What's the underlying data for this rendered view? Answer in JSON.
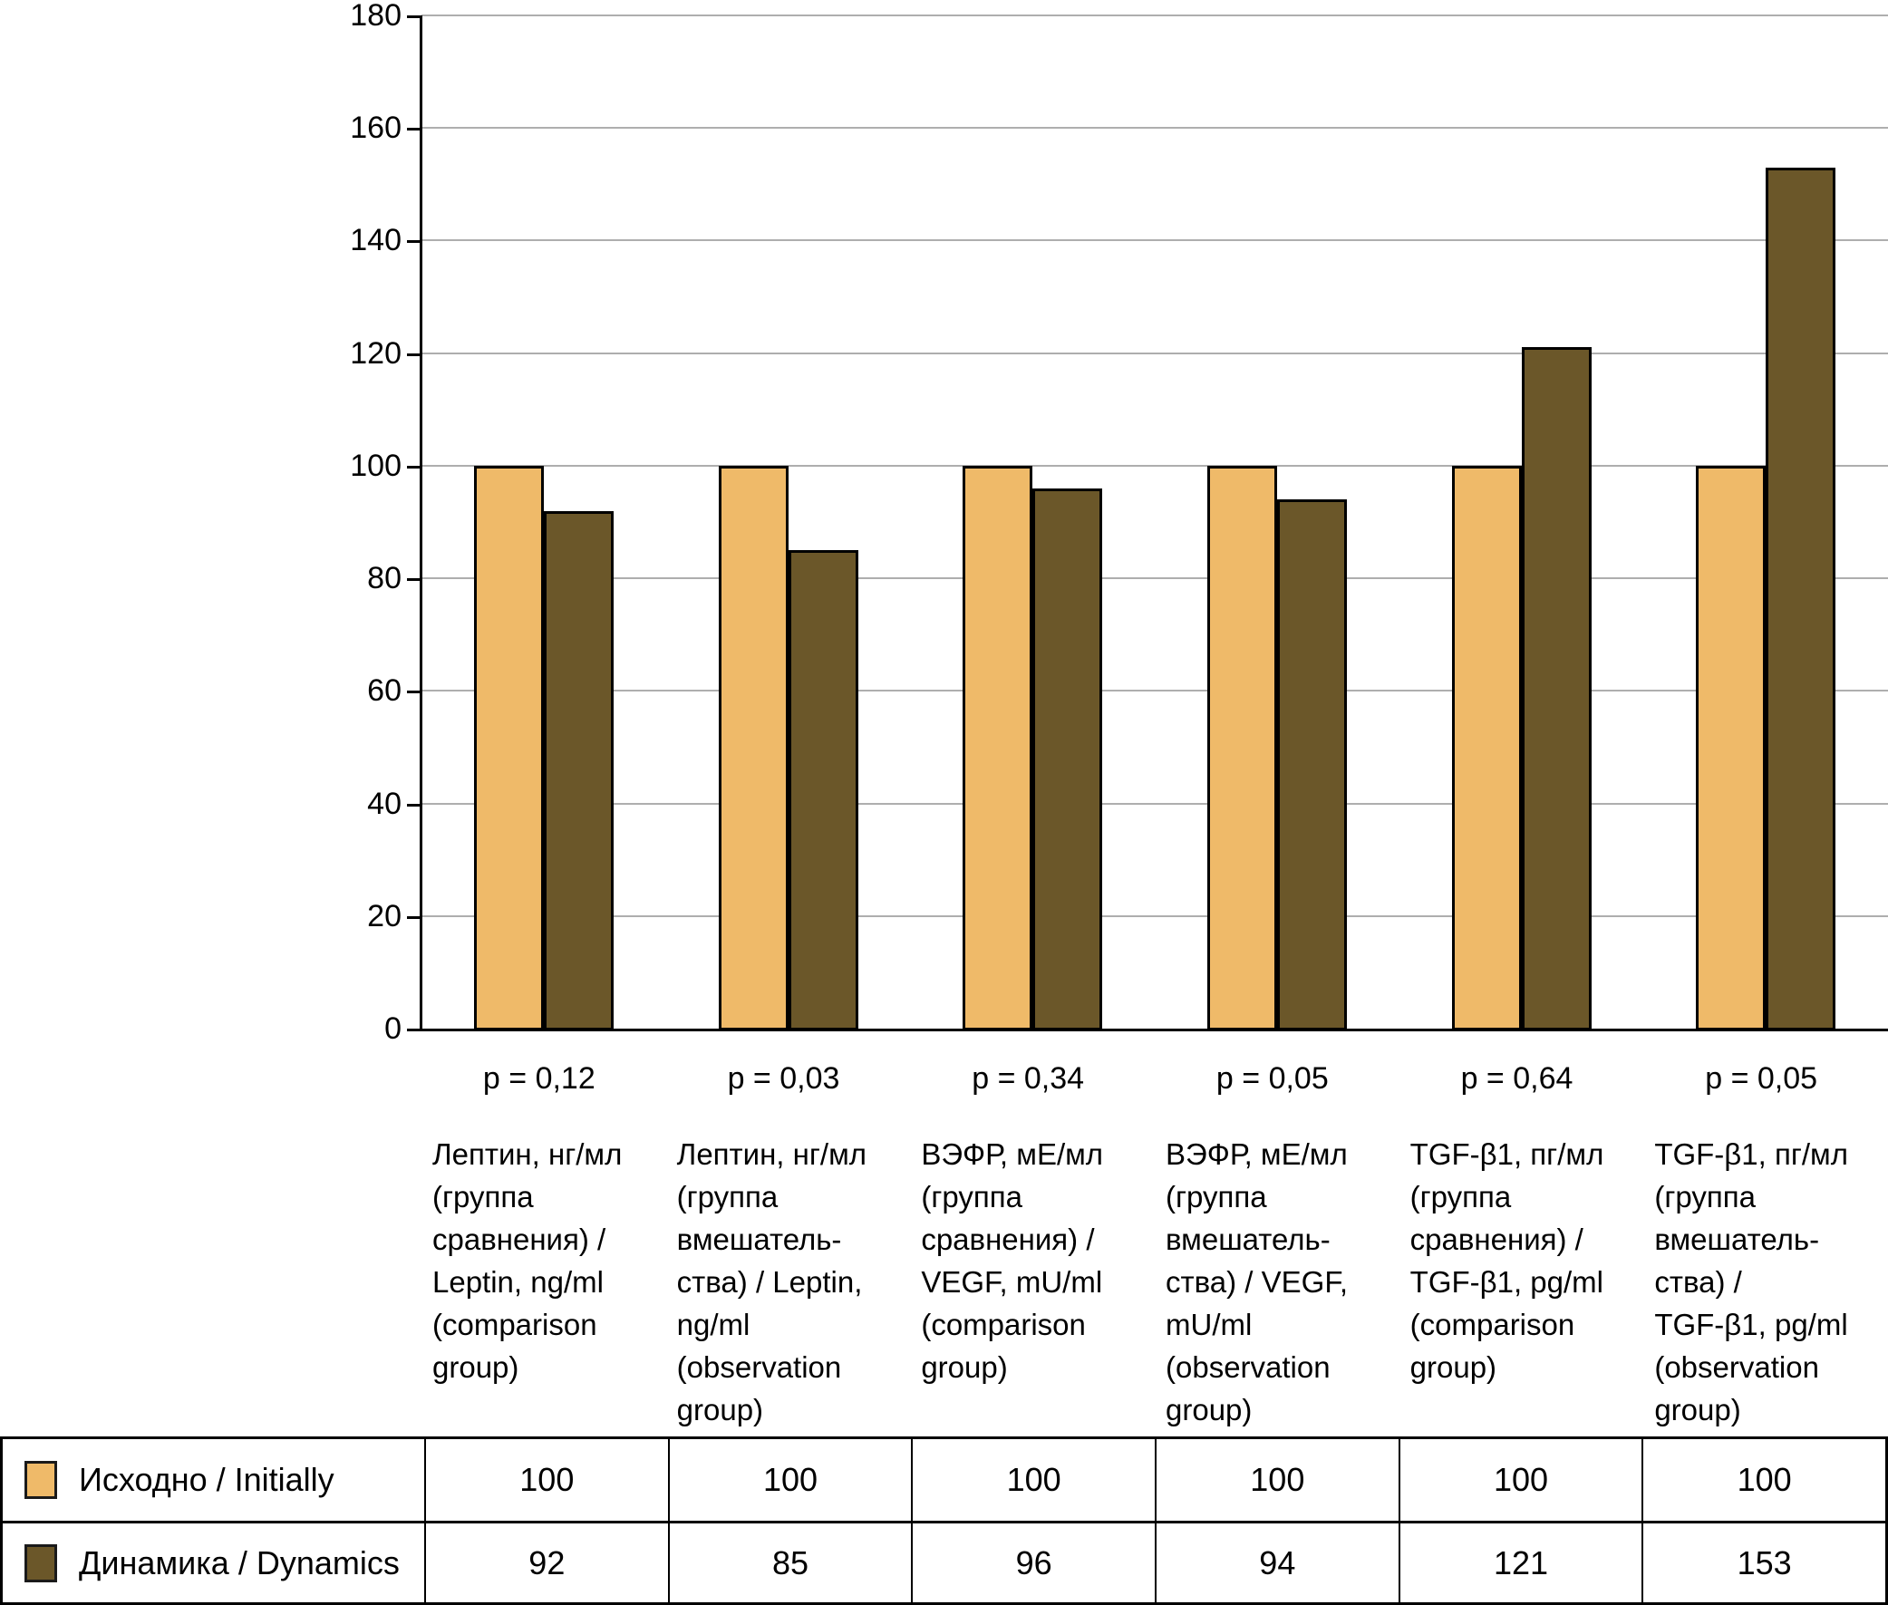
{
  "chart_data": {
    "type": "bar",
    "title": "",
    "xlabel": "",
    "ylabel": "",
    "ylim": [
      0,
      180
    ],
    "ytick_step": 20,
    "grid": true,
    "legend_position": "bottom-table",
    "categories": [
      "Лептин, нг/мл\n(группа\nсравнения) /\nLeptin, ng/ml\n(comparison\ngroup)",
      "Лептин, нг/мл\n(группа\nвмешатель-\nства) / Leptin,\nng/ml\n(observation\ngroup)",
      "ВЭФР, мЕ/мл\n(группа\nсравнения) /\nVEGF, mU/ml\n(comparison\ngroup)",
      "ВЭФР, мЕ/мл\n(группа\nвмешатель-\nства) / VEGF,\nmU/ml\n(observation\ngroup)",
      "TGF-β1, пг/мл\n(группа\nсравнения) /\nTGF-β1, pg/ml\n(comparison\ngroup)",
      "TGF-β1, пг/мл\n(группа\nвмешатель-\nства) /\nTGF-β1, pg/ml\n(observation\ngroup)"
    ],
    "p_labels": [
      "p = 0,12",
      "p = 0,03",
      "p = 0,34",
      "p = 0,05",
      "p = 0,64",
      "p = 0,05"
    ],
    "series": [
      {
        "name": "Исходно / Initially",
        "color": "#EFBA69",
        "values": [
          100,
          100,
          100,
          100,
          100,
          100
        ]
      },
      {
        "name": "Динамика / Dynamics",
        "color": "#6B5729",
        "values": [
          92,
          85,
          96,
          94,
          121,
          153
        ]
      }
    ],
    "colors": {
      "initially": "#EFBA69",
      "dynamics": "#6B5729",
      "grid": "#AEAEAE",
      "axis": "#000000"
    }
  },
  "table": {
    "rows": [
      {
        "label": "Исходно / Initially",
        "swatch": "#EFBA69",
        "values": [
          "100",
          "100",
          "100",
          "100",
          "100",
          "100"
        ]
      },
      {
        "label": "Динамика / Dynamics",
        "swatch": "#6B5729",
        "values": [
          "92",
          "85",
          "96",
          "94",
          "121",
          "153"
        ]
      }
    ]
  }
}
